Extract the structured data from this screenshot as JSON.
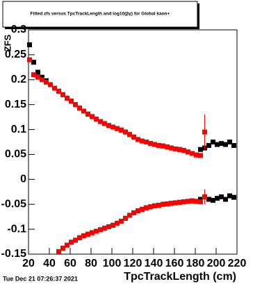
{
  "chart_data": {
    "type": "scatter",
    "title": "Fitted  zfs  versus TpcTrackLength and log10(βγ) for Global kaon+",
    "x_label": "TpcTrackLength (cm)",
    "y_label": "ZFS",
    "footer": "Tue Dec 21 07:26:37 2021",
    "xlim": [
      20,
      220
    ],
    "xticks": [
      20,
      40,
      60,
      80,
      100,
      120,
      140,
      160,
      180,
      200,
      220
    ],
    "ylim": [
      -0.15,
      0.3
    ],
    "yticks": [
      -0.15,
      -0.1,
      -0.05,
      0,
      0.05,
      0.1,
      0.15,
      0.2,
      0.25,
      0.3
    ],
    "series": [
      {
        "color": "#000000",
        "x": [
          21,
          25,
          29,
          33,
          37,
          41,
          45,
          49,
          53,
          57,
          61,
          65,
          69,
          73,
          77,
          81,
          85,
          89,
          93,
          97,
          101,
          105,
          109,
          113,
          117,
          121,
          125,
          129,
          133,
          137,
          141,
          145,
          149,
          153,
          157,
          161,
          165,
          169,
          173,
          177,
          181,
          185,
          189,
          193,
          197,
          201,
          205,
          209,
          213,
          217
        ],
        "values": [
          0.27,
          0.235,
          0.215,
          0.205,
          0.198,
          0.19,
          0.183,
          0.177,
          0.17,
          0.163,
          0.157,
          0.15,
          0.143,
          0.137,
          0.131,
          0.126,
          0.121,
          0.116,
          0.112,
          0.108,
          0.105,
          0.102,
          0.099,
          0.095,
          0.09,
          0.085,
          0.08,
          0.077,
          0.075,
          0.072,
          0.07,
          0.068,
          0.067,
          0.065,
          0.063,
          0.061,
          0.06,
          0.058,
          0.055,
          0.052,
          0.049,
          0.06,
          0.063,
          0.068,
          0.075,
          0.07,
          0.072,
          0.07,
          0.075,
          0.068
        ]
      },
      {
        "color": "#000000",
        "x": [
          49,
          53,
          57,
          61,
          65,
          69,
          73,
          77,
          81,
          85,
          89,
          93,
          97,
          101,
          105,
          109,
          113,
          117,
          121,
          125,
          129,
          133,
          137,
          141,
          145,
          149,
          153,
          157,
          161,
          165,
          169,
          173,
          177,
          181,
          185,
          189,
          193,
          197,
          201,
          205,
          209,
          213,
          217
        ],
        "values": [
          -0.145,
          -0.138,
          -0.132,
          -0.126,
          -0.122,
          -0.117,
          -0.113,
          -0.11,
          -0.107,
          -0.104,
          -0.101,
          -0.098,
          -0.095,
          -0.092,
          -0.088,
          -0.084,
          -0.078,
          -0.072,
          -0.067,
          -0.063,
          -0.06,
          -0.057,
          -0.055,
          -0.053,
          -0.052,
          -0.05,
          -0.049,
          -0.048,
          -0.047,
          -0.046,
          -0.045,
          -0.044,
          -0.043,
          -0.044,
          -0.04,
          -0.035,
          -0.04,
          -0.042,
          -0.038,
          -0.035,
          -0.04,
          -0.033,
          -0.036
        ]
      },
      {
        "color": "#ff0000",
        "x": [
          21,
          25,
          29,
          33,
          37,
          41,
          45,
          49,
          53,
          57,
          61,
          65,
          69,
          73,
          77,
          81,
          85,
          89,
          93,
          97,
          101,
          105,
          109,
          113,
          117,
          121,
          125,
          129,
          133,
          137,
          141,
          145,
          149,
          153,
          157,
          161,
          165,
          169,
          173,
          177,
          181,
          185,
          189
        ],
        "values": [
          0.24,
          0.21,
          0.205,
          0.2,
          0.195,
          0.19,
          0.183,
          0.177,
          0.17,
          0.163,
          0.157,
          0.15,
          0.143,
          0.137,
          0.131,
          0.126,
          0.121,
          0.116,
          0.112,
          0.108,
          0.105,
          0.102,
          0.099,
          0.095,
          0.09,
          0.085,
          0.08,
          0.077,
          0.075,
          0.072,
          0.07,
          0.068,
          0.067,
          0.065,
          0.063,
          0.061,
          0.06,
          0.058,
          0.055,
          0.052,
          0.049,
          0.048,
          0.095
        ],
        "errors": [
          null,
          null,
          null,
          null,
          null,
          null,
          null,
          null,
          null,
          null,
          null,
          null,
          null,
          null,
          null,
          null,
          null,
          null,
          null,
          null,
          null,
          null,
          null,
          null,
          null,
          null,
          null,
          null,
          null,
          null,
          null,
          null,
          null,
          null,
          null,
          null,
          null,
          null,
          null,
          null,
          null,
          null,
          0.035
        ]
      },
      {
        "color": "#ff0000",
        "x": [
          49,
          53,
          57,
          61,
          65,
          69,
          73,
          77,
          81,
          85,
          89,
          93,
          97,
          101,
          105,
          109,
          113,
          117,
          121,
          125,
          129,
          133,
          137,
          141,
          145,
          149,
          153,
          157,
          161,
          165,
          169,
          173,
          177,
          181,
          185,
          189
        ],
        "values": [
          -0.145,
          -0.138,
          -0.132,
          -0.126,
          -0.122,
          -0.117,
          -0.113,
          -0.11,
          -0.107,
          -0.104,
          -0.101,
          -0.098,
          -0.095,
          -0.092,
          -0.088,
          -0.084,
          -0.078,
          -0.072,
          -0.067,
          -0.063,
          -0.06,
          -0.057,
          -0.055,
          -0.053,
          -0.052,
          -0.05,
          -0.049,
          -0.048,
          -0.047,
          -0.046,
          -0.045,
          -0.044,
          -0.043,
          -0.044,
          -0.045,
          -0.035
        ],
        "errors": [
          null,
          null,
          null,
          null,
          null,
          null,
          null,
          null,
          null,
          null,
          null,
          null,
          null,
          null,
          null,
          null,
          null,
          null,
          null,
          null,
          null,
          null,
          null,
          null,
          null,
          null,
          null,
          null,
          null,
          null,
          null,
          null,
          null,
          null,
          null,
          0.015
        ]
      }
    ]
  }
}
